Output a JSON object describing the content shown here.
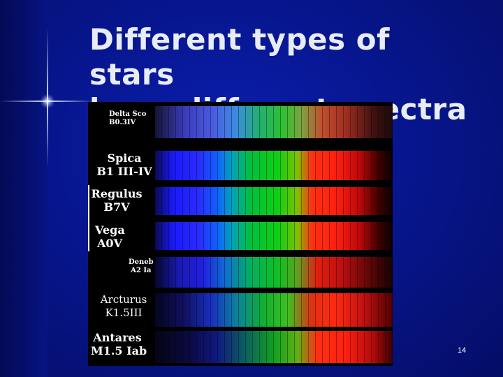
{
  "slide": {
    "title_lines": [
      "Different types of stars",
      "have different spectra"
    ],
    "page_number": "14"
  },
  "spectra": [
    {
      "name": "Delta Sco",
      "type": "B0.3IV"
    },
    {
      "name": "Spica",
      "type": "B1 III-IV"
    },
    {
      "name": "Regulus",
      "type": "B7V"
    },
    {
      "name": "Vega",
      "type": "A0V"
    },
    {
      "name": "Deneb",
      "type": "A2 Ia"
    },
    {
      "name": "Arcturus",
      "type": "K1.5III"
    },
    {
      "name": "Antares",
      "type": "M1.5 Iab"
    }
  ]
}
